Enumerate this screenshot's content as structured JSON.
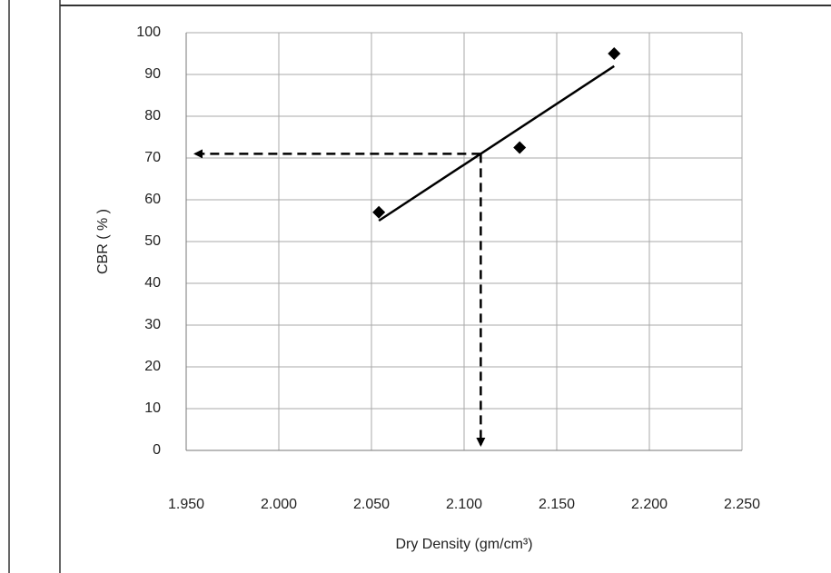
{
  "chart_data": {
    "type": "scatter",
    "x": [
      2.054,
      2.13,
      2.181
    ],
    "values": [
      57,
      72.5,
      95
    ],
    "color": "#000000",
    "trendline": {
      "x": [
        2.054,
        2.181
      ],
      "y": [
        55,
        92
      ],
      "color": "#000000"
    },
    "reference": {
      "x": 2.109,
      "y": 71
    },
    "xlim": [
      1.95,
      2.25
    ],
    "xticks": [
      {
        "value": 1.95,
        "label": "1.950"
      },
      {
        "value": 2.0,
        "label": "2.000"
      },
      {
        "value": 2.05,
        "label": "2.050"
      },
      {
        "value": 2.1,
        "label": "2.100"
      },
      {
        "value": 2.15,
        "label": "2.150"
      },
      {
        "value": 2.2,
        "label": "2.200"
      },
      {
        "value": 2.25,
        "label": "2.250"
      }
    ],
    "ylim": [
      0,
      100
    ],
    "yticks": [
      0,
      10,
      20,
      30,
      40,
      50,
      60,
      70,
      80,
      90,
      100
    ],
    "x_label": "Dry  Density (gm/cm³)",
    "y_label": "CBR ( % )",
    "grid": true
  }
}
